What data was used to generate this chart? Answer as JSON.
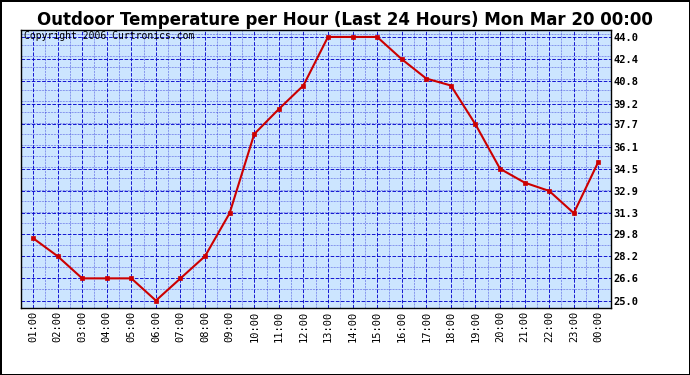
{
  "title": "Outdoor Temperature per Hour (Last 24 Hours) Mon Mar 20 00:00",
  "copyright": "Copyright 2006 Curtronics.com",
  "x_labels": [
    "01:00",
    "02:00",
    "03:00",
    "04:00",
    "05:00",
    "06:00",
    "07:00",
    "08:00",
    "09:00",
    "10:00",
    "11:00",
    "12:00",
    "13:00",
    "14:00",
    "15:00",
    "16:00",
    "17:00",
    "18:00",
    "19:00",
    "20:00",
    "21:00",
    "22:00",
    "23:00",
    "00:00"
  ],
  "y_values": [
    29.5,
    28.2,
    26.6,
    26.6,
    26.6,
    25.0,
    26.6,
    28.2,
    31.3,
    37.0,
    38.8,
    40.5,
    44.0,
    44.0,
    44.0,
    42.4,
    41.0,
    40.5,
    37.7,
    34.5,
    33.5,
    32.9,
    31.3,
    35.0
  ],
  "y_ticks": [
    25.0,
    26.6,
    28.2,
    29.8,
    31.3,
    32.9,
    34.5,
    36.1,
    37.7,
    39.2,
    40.8,
    42.4,
    44.0
  ],
  "ylim": [
    24.5,
    44.5
  ],
  "line_color": "#cc0000",
  "marker_color": "#cc0000",
  "bg_color": "#cce5ff",
  "grid_color": "#0000cc",
  "title_fontsize": 12,
  "tick_fontsize": 7.5,
  "copyright_fontsize": 7
}
